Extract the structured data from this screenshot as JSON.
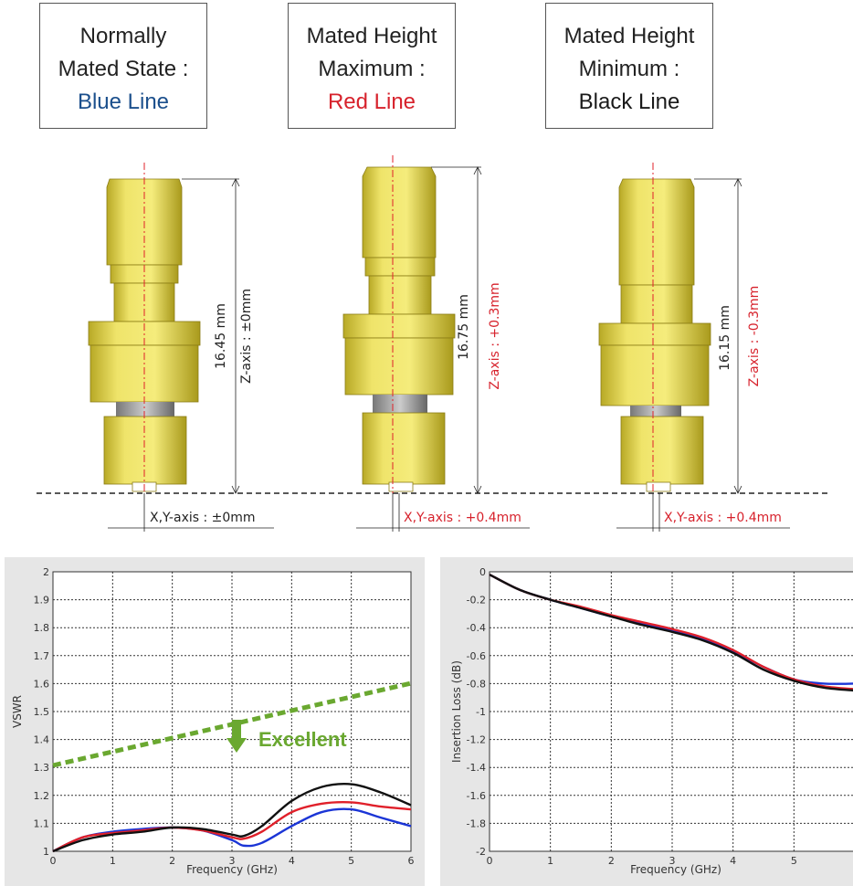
{
  "state_boxes": [
    {
      "line1": "Normally",
      "line2": "Mated State :",
      "line3": "Blue Line"
    },
    {
      "line1": "Mated Height",
      "line2": "Maximum :",
      "line3": "Red Line"
    },
    {
      "line1": "Mated Height",
      "line2": "Minimum :",
      "line3": "Black Line"
    }
  ],
  "connectors": [
    {
      "height_label": "16.45 mm",
      "z_label": "Z-axis : ±0mm",
      "xy_label": "X,Y-axis : ±0mm",
      "offset_color": "#222222"
    },
    {
      "height_label": "16.75 mm",
      "z_label": "Z-axis : +0.3mm",
      "xy_label": "X,Y-axis : +0.4mm",
      "offset_color": "#d7222c"
    },
    {
      "height_label": "16.15 mm",
      "z_label": "Z-axis : -0.3mm",
      "xy_label": "X,Y-axis : +0.4mm",
      "offset_color": "#d7222c"
    }
  ],
  "colors": {
    "blue": "#1b35d6",
    "red": "#e0202a",
    "black": "#111111",
    "gold": "#e9dd52",
    "arrow": "#6aa830",
    "grid": "#333333"
  },
  "chart_data": [
    {
      "type": "line",
      "xlabel": "Frequency (GHz)",
      "ylabel": "VSWR",
      "xlim": [
        0,
        6
      ],
      "ylim": [
        1,
        2
      ],
      "xticks": [
        "0",
        "1",
        "2",
        "3",
        "4",
        "5",
        "6"
      ],
      "yticks": [
        "1",
        "1.1",
        "1.2",
        "1.3",
        "1.4",
        "1.5",
        "1.6",
        "1.7",
        "1.8",
        "1.9",
        "2"
      ],
      "grid": true,
      "annotation": "Excellent",
      "series": [
        {
          "color": "blue",
          "x": [
            0,
            0.5,
            1,
            1.5,
            2,
            2.5,
            3,
            3.2,
            3.5,
            4,
            4.5,
            5,
            5.5,
            6
          ],
          "y": [
            1.0,
            1.05,
            1.07,
            1.08,
            1.085,
            1.075,
            1.04,
            1.02,
            1.03,
            1.09,
            1.14,
            1.15,
            1.12,
            1.09
          ]
        },
        {
          "color": "red",
          "x": [
            0,
            0.5,
            1,
            1.5,
            2,
            2.5,
            3,
            3.2,
            3.5,
            4,
            4.5,
            5,
            5.5,
            6
          ],
          "y": [
            1.0,
            1.05,
            1.065,
            1.075,
            1.085,
            1.075,
            1.05,
            1.045,
            1.07,
            1.14,
            1.17,
            1.175,
            1.16,
            1.15
          ]
        },
        {
          "color": "black",
          "x": [
            0,
            0.5,
            1,
            1.5,
            2,
            2.5,
            3,
            3.2,
            3.5,
            4,
            4.5,
            5,
            5.5,
            6
          ],
          "y": [
            1.0,
            1.04,
            1.06,
            1.07,
            1.085,
            1.08,
            1.06,
            1.055,
            1.09,
            1.18,
            1.23,
            1.24,
            1.21,
            1.165
          ]
        }
      ]
    },
    {
      "type": "line",
      "xlabel": "Frequency (GHz)",
      "ylabel": "Insertion Loss (dB)",
      "xlim": [
        0,
        6
      ],
      "ylim": [
        -2,
        0
      ],
      "xticks": [
        "0",
        "1",
        "2",
        "3",
        "4",
        "5"
      ],
      "yticks": [
        "-2",
        "-1.8",
        "-1.6",
        "-1.4",
        "-1.2",
        "-1",
        "-0.8",
        "-0.6",
        "-0.4",
        "-0.2",
        "0"
      ],
      "grid": true,
      "series": [
        {
          "color": "blue",
          "x": [
            0,
            0.5,
            1,
            1.5,
            2,
            2.5,
            3,
            3.5,
            4,
            4.5,
            5,
            5.5,
            6
          ],
          "y": [
            -0.02,
            -0.13,
            -0.2,
            -0.26,
            -0.32,
            -0.37,
            -0.42,
            -0.48,
            -0.57,
            -0.68,
            -0.77,
            -0.8,
            -0.8
          ]
        },
        {
          "color": "red",
          "x": [
            0,
            0.5,
            1,
            1.5,
            2,
            2.5,
            3,
            3.5,
            4,
            4.5,
            5,
            5.5,
            6
          ],
          "y": [
            -0.02,
            -0.13,
            -0.2,
            -0.25,
            -0.31,
            -0.36,
            -0.41,
            -0.47,
            -0.56,
            -0.68,
            -0.77,
            -0.82,
            -0.84
          ]
        },
        {
          "color": "black",
          "x": [
            0,
            0.5,
            1,
            1.5,
            2,
            2.5,
            3,
            3.5,
            4,
            4.5,
            5,
            5.5,
            6
          ],
          "y": [
            -0.02,
            -0.13,
            -0.2,
            -0.26,
            -0.32,
            -0.38,
            -0.43,
            -0.49,
            -0.58,
            -0.7,
            -0.78,
            -0.83,
            -0.85
          ]
        }
      ]
    }
  ]
}
